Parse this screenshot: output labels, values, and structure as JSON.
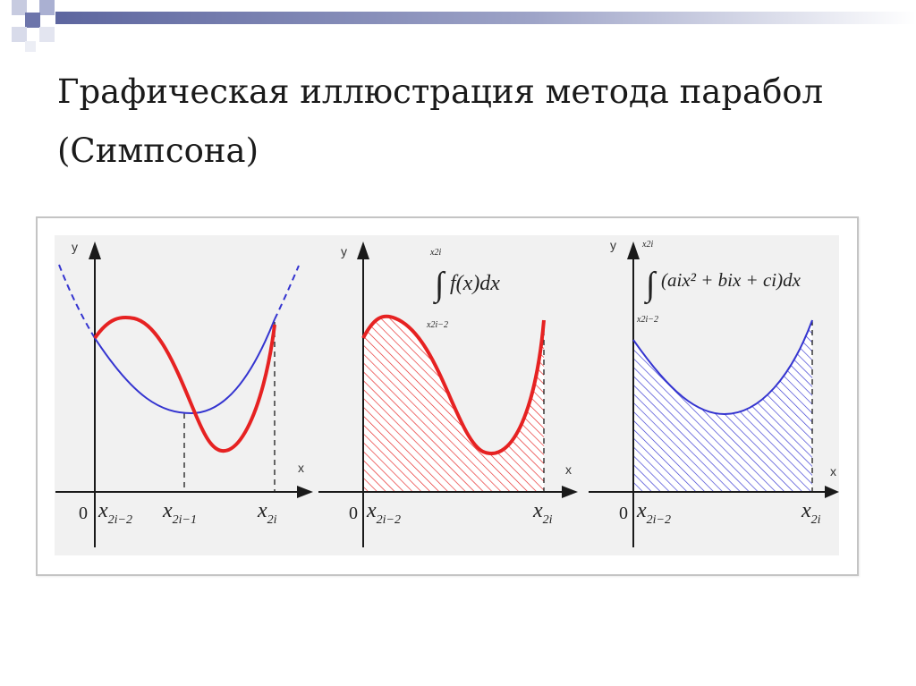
{
  "slide": {
    "title_line1": "Графическая иллюстрация метода парабол",
    "title_line2": "(Симпсона)"
  },
  "colors": {
    "function_curve": "#e62222",
    "parabola_curve": "#3434d0",
    "axis": "#1a1a1a",
    "panel_background": "#f1f1f1",
    "header_bar": "#6a73a8"
  },
  "panels": [
    {
      "axis_y": "y",
      "axis_x": "x",
      "origin": "0",
      "x_labels": [
        {
          "base": "x",
          "sub": "2i−2"
        },
        {
          "base": "x",
          "sub": "2i−1"
        },
        {
          "base": "x",
          "sub": "2i"
        }
      ]
    },
    {
      "axis_y": "y",
      "axis_x": "x",
      "origin": "0",
      "integral_upper": "x2i",
      "integral_lower": "x2i−2",
      "integrand": "f(x)dx",
      "x_labels": [
        {
          "base": "x",
          "sub": "2i−2"
        },
        {
          "base": "x",
          "sub": "2i"
        }
      ]
    },
    {
      "axis_y": "y",
      "axis_x": "x",
      "origin": "0",
      "integral_upper": "x2i",
      "integral_lower": "x2i−2",
      "integrand": "(aix² + bix + ci)dx",
      "x_labels": [
        {
          "base": "x",
          "sub": "2i−2"
        },
        {
          "base": "x",
          "sub": "2i"
        }
      ]
    }
  ]
}
